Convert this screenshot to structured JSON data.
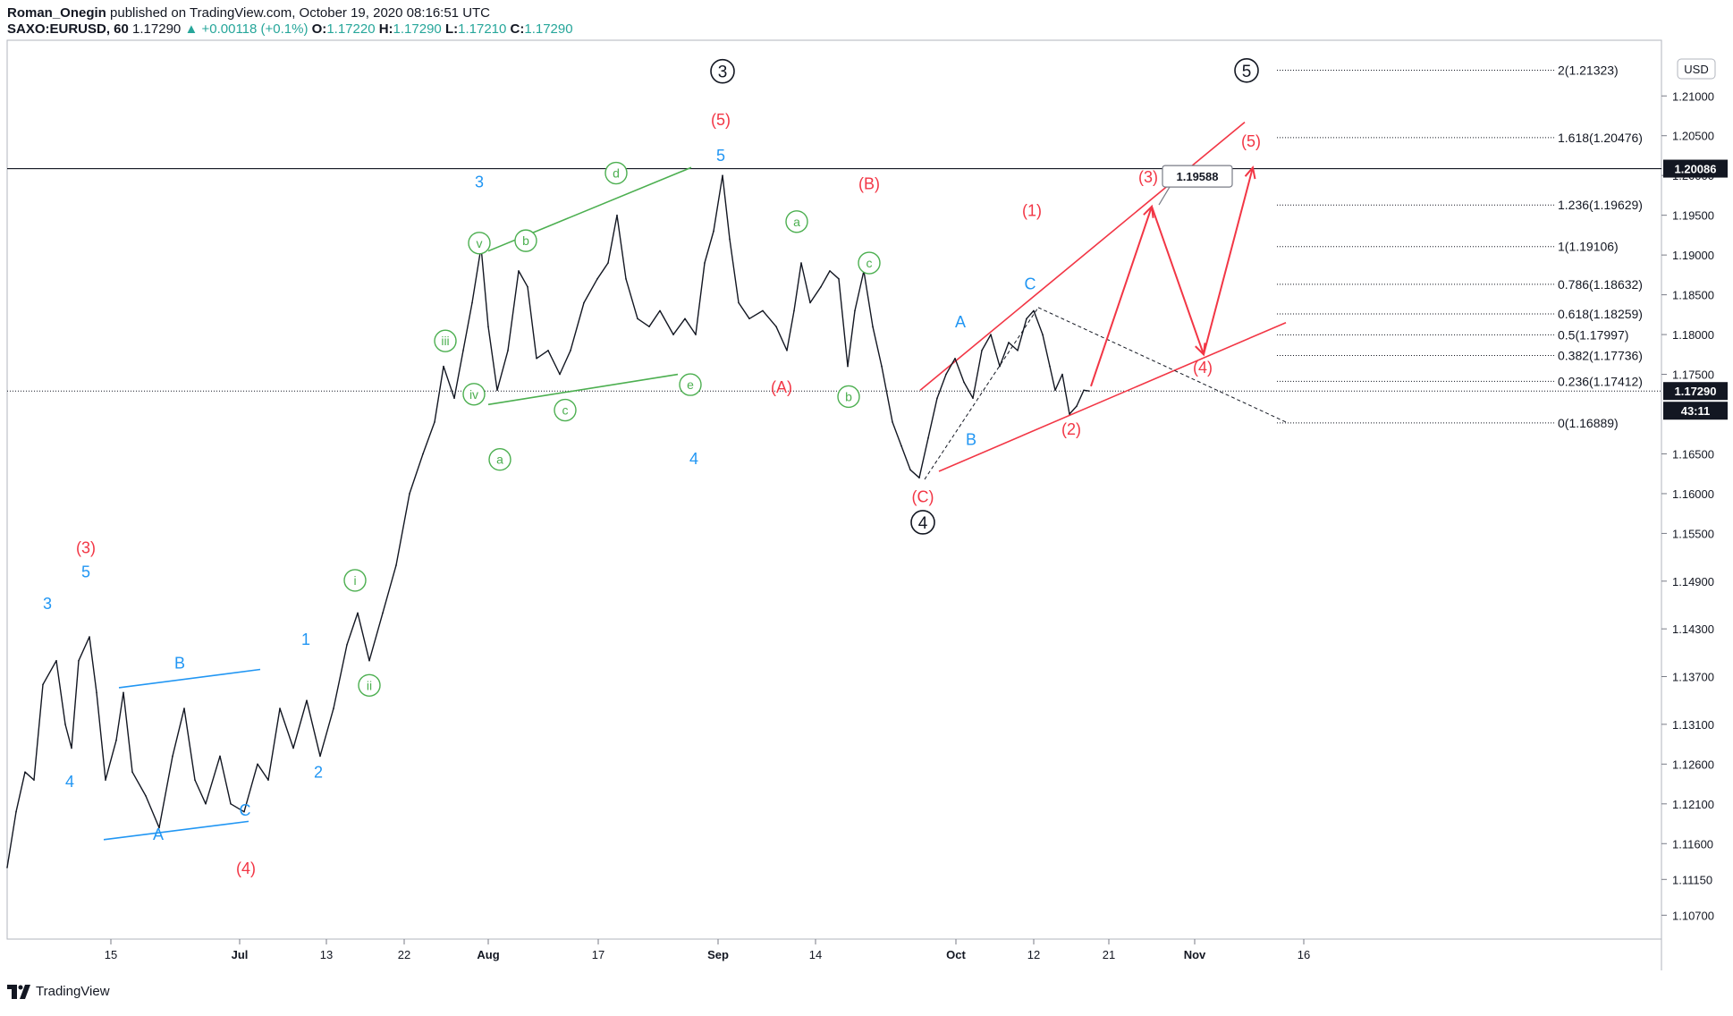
{
  "header": {
    "author": "Roman_Onegin",
    "published_text": "published on TradingView.com, October 19, 2020 08:16:51 UTC",
    "symbol": "SAXO:EURUSD, 60",
    "last": "1.17290",
    "change": "+0.00118 (+0.1%)",
    "o_label": "O:",
    "o": "1.17220",
    "h_label": "H:",
    "h": "1.17290",
    "l_label": "L:",
    "l": "1.17210",
    "c_label": "C:",
    "c": "1.17290"
  },
  "currency_badge": "USD",
  "footer": {
    "brand": "TradingView"
  },
  "colors": {
    "up": "#26a69a",
    "blue": "#2196f3",
    "red": "#f23645",
    "green": "#4caf50",
    "black": "#131722",
    "grid": "#e0e3eb"
  },
  "chart_data": {
    "type": "line",
    "title": "",
    "ylim": [
      1.104,
      1.217
    ],
    "x_ticks": [
      "15",
      "Jul",
      "13",
      "22",
      "Aug",
      "17",
      "Sep",
      "14",
      "Oct",
      "12",
      "21",
      "Nov",
      "16"
    ],
    "y_ticks": [
      "1.21000",
      "1.20500",
      "1.20000",
      "1.19500",
      "1.19000",
      "1.18500",
      "1.18000",
      "1.17500",
      "1.16500",
      "1.16000",
      "1.15500",
      "1.14900",
      "1.14300",
      "1.13700",
      "1.13100",
      "1.12600",
      "1.12100",
      "1.11600",
      "1.11150",
      "1.10700"
    ],
    "price_line": {
      "value": 1.1729,
      "label": "1.17290",
      "countdown": "43:11"
    },
    "resistance_line": {
      "value": 1.20086,
      "label": "1.20086"
    },
    "target_callout": "1.19588",
    "fib_levels": [
      {
        "label": "2(1.21323)",
        "value": 1.21323
      },
      {
        "label": "1.618(1.20476)",
        "value": 1.20476
      },
      {
        "label": "1.236(1.19629)",
        "value": 1.19629
      },
      {
        "label": "1(1.19106)",
        "value": 1.19106
      },
      {
        "label": "0.786(1.18632)",
        "value": 1.18632
      },
      {
        "label": "0.618(1.18259)",
        "value": 1.18259
      },
      {
        "label": "0.5(1.17997)",
        "value": 1.17997
      },
      {
        "label": "0.382(1.17736)",
        "value": 1.17736
      },
      {
        "label": "0.236(1.17412)",
        "value": 1.17412
      },
      {
        "label": "0(1.16889)",
        "value": 1.16889
      }
    ],
    "series": [
      {
        "values": [
          [
            0,
            1.113
          ],
          [
            10,
            1.12
          ],
          [
            20,
            1.125
          ],
          [
            30,
            1.124
          ],
          [
            40,
            1.136
          ],
          [
            55,
            1.139
          ],
          [
            65,
            1.131
          ],
          [
            72,
            1.128
          ],
          [
            80,
            1.139
          ],
          [
            92,
            1.142
          ],
          [
            100,
            1.135
          ],
          [
            110,
            1.124
          ],
          [
            122,
            1.129
          ],
          [
            130,
            1.135
          ],
          [
            140,
            1.125
          ],
          [
            155,
            1.122
          ],
          [
            170,
            1.118
          ],
          [
            185,
            1.127
          ],
          [
            198,
            1.133
          ],
          [
            210,
            1.124
          ],
          [
            222,
            1.121
          ],
          [
            238,
            1.127
          ],
          [
            250,
            1.121
          ],
          [
            265,
            1.12
          ],
          [
            280,
            1.126
          ],
          [
            292,
            1.124
          ],
          [
            305,
            1.133
          ],
          [
            320,
            1.128
          ],
          [
            335,
            1.134
          ],
          [
            350,
            1.127
          ],
          [
            365,
            1.133
          ],
          [
            380,
            1.141
          ],
          [
            392,
            1.145
          ],
          [
            405,
            1.139
          ],
          [
            420,
            1.145
          ],
          [
            435,
            1.151
          ],
          [
            450,
            1.16
          ],
          [
            465,
            1.165
          ],
          [
            478,
            1.169
          ],
          [
            488,
            1.176
          ],
          [
            500,
            1.172
          ],
          [
            510,
            1.178
          ],
          [
            520,
            1.184
          ],
          [
            530,
            1.191
          ],
          [
            538,
            1.181
          ],
          [
            548,
            1.173
          ],
          [
            560,
            1.178
          ],
          [
            572,
            1.188
          ],
          [
            582,
            1.186
          ],
          [
            592,
            1.177
          ],
          [
            605,
            1.178
          ],
          [
            618,
            1.175
          ],
          [
            630,
            1.178
          ],
          [
            645,
            1.184
          ],
          [
            660,
            1.187
          ],
          [
            672,
            1.189
          ],
          [
            682,
            1.195
          ],
          [
            692,
            1.187
          ],
          [
            705,
            1.182
          ],
          [
            718,
            1.181
          ],
          [
            730,
            1.183
          ],
          [
            745,
            1.18
          ],
          [
            758,
            1.182
          ],
          [
            770,
            1.18
          ],
          [
            780,
            1.189
          ],
          [
            790,
            1.193
          ],
          [
            800,
            1.2
          ],
          [
            808,
            1.192
          ],
          [
            818,
            1.184
          ],
          [
            830,
            1.182
          ],
          [
            845,
            1.183
          ],
          [
            860,
            1.181
          ],
          [
            872,
            1.178
          ],
          [
            880,
            1.183
          ],
          [
            888,
            1.189
          ],
          [
            898,
            1.184
          ],
          [
            910,
            1.186
          ],
          [
            920,
            1.188
          ],
          [
            930,
            1.187
          ],
          [
            940,
            1.176
          ],
          [
            948,
            1.183
          ],
          [
            958,
            1.188
          ],
          [
            968,
            1.181
          ],
          [
            978,
            1.176
          ],
          [
            990,
            1.169
          ],
          [
            1000,
            1.166
          ],
          [
            1010,
            1.163
          ],
          [
            1020,
            1.162
          ],
          [
            1030,
            1.167
          ],
          [
            1040,
            1.172
          ],
          [
            1050,
            1.175
          ],
          [
            1060,
            1.177
          ],
          [
            1070,
            1.174
          ],
          [
            1080,
            1.172
          ],
          [
            1090,
            1.178
          ],
          [
            1100,
            1.18
          ],
          [
            1110,
            1.176
          ],
          [
            1120,
            1.179
          ],
          [
            1130,
            1.178
          ],
          [
            1140,
            1.182
          ],
          [
            1148,
            1.183
          ],
          [
            1158,
            1.18
          ],
          [
            1166,
            1.176
          ],
          [
            1172,
            1.173
          ],
          [
            1180,
            1.175
          ],
          [
            1188,
            1.17
          ],
          [
            1196,
            1.171
          ],
          [
            1204,
            1.173
          ],
          [
            1210,
            1.1729
          ]
        ]
      }
    ],
    "wave_labels": [
      {
        "text": "3",
        "color": "blue",
        "d": 45,
        "p": 1.1455,
        "fs": 18
      },
      {
        "text": "5",
        "color": "blue",
        "d": 88,
        "p": 1.1495,
        "fs": 18
      },
      {
        "text": "(3)",
        "color": "red",
        "d": 88,
        "p": 1.1525,
        "fs": 18
      },
      {
        "text": "4",
        "color": "blue",
        "d": 70,
        "p": 1.1231,
        "fs": 18
      },
      {
        "text": "B",
        "color": "blue",
        "d": 193,
        "p": 1.138,
        "fs": 18
      },
      {
        "text": "A",
        "color": "blue",
        "d": 169,
        "p": 1.1165,
        "fs": 18
      },
      {
        "text": "C",
        "color": "blue",
        "d": 266,
        "p": 1.1195,
        "fs": 18
      },
      {
        "text": "(4)",
        "color": "red",
        "d": 267,
        "p": 1.1122,
        "fs": 18
      },
      {
        "text": "1",
        "color": "blue",
        "d": 334,
        "p": 1.141,
        "fs": 18
      },
      {
        "text": "2",
        "color": "blue",
        "d": 348,
        "p": 1.1243,
        "fs": 18
      },
      {
        "text": "3",
        "color": "blue",
        "d": 528,
        "p": 1.1985,
        "fs": 18
      },
      {
        "text": "4",
        "color": "blue",
        "d": 768,
        "p": 1.1637,
        "fs": 18
      },
      {
        "text": "5",
        "color": "blue",
        "d": 798,
        "p": 1.2018,
        "fs": 18
      },
      {
        "text": "(5)",
        "color": "red",
        "d": 798,
        "p": 1.2063,
        "fs": 18
      },
      {
        "text": "(A)",
        "color": "red",
        "d": 866,
        "p": 1.1727,
        "fs": 18
      },
      {
        "text": "(B)",
        "color": "red",
        "d": 964,
        "p": 1.1983,
        "fs": 18
      },
      {
        "text": "(C)",
        "color": "red",
        "d": 1024,
        "p": 1.1589,
        "fs": 18
      },
      {
        "text": "A",
        "color": "blue",
        "d": 1066,
        "p": 1.1809,
        "fs": 18
      },
      {
        "text": "B",
        "color": "blue",
        "d": 1078,
        "p": 1.1661,
        "fs": 18
      },
      {
        "text": "C",
        "color": "blue",
        "d": 1144,
        "p": 1.1857,
        "fs": 18
      },
      {
        "text": "(1)",
        "color": "red",
        "d": 1146,
        "p": 1.1949,
        "fs": 18
      },
      {
        "text": "(2)",
        "color": "red",
        "d": 1190,
        "p": 1.1674,
        "fs": 18
      },
      {
        "text": "(3)",
        "color": "red",
        "d": 1276,
        "p": 1.1991,
        "fs": 18
      },
      {
        "text": "(4)",
        "color": "red",
        "d": 1337,
        "p": 1.1752,
        "fs": 18
      },
      {
        "text": "(5)",
        "color": "red",
        "d": 1391,
        "p": 1.2036,
        "fs": 18
      }
    ],
    "circled_labels": [
      {
        "text": "i",
        "d": 389,
        "p": 1.1491
      },
      {
        "text": "ii",
        "d": 405,
        "p": 1.1359
      },
      {
        "text": "iii",
        "d": 490,
        "p": 1.1792
      },
      {
        "text": "iv",
        "d": 522,
        "p": 1.1725
      },
      {
        "text": "v",
        "d": 528,
        "p": 1.1915
      },
      {
        "text": "a",
        "d": 551,
        "p": 1.1643
      },
      {
        "text": "b",
        "d": 580,
        "p": 1.1918
      },
      {
        "text": "c",
        "d": 624,
        "p": 1.1705
      },
      {
        "text": "d",
        "d": 681,
        "p": 1.2003
      },
      {
        "text": "e",
        "d": 764,
        "p": 1.1737
      },
      {
        "text": "a",
        "d": 883,
        "p": 1.1942
      },
      {
        "text": "b",
        "d": 941,
        "p": 1.1722
      },
      {
        "text": "c",
        "d": 964,
        "p": 1.189
      }
    ],
    "degree_labels": [
      {
        "text": "3",
        "d": 800,
        "p": 1.2131
      },
      {
        "text": "4",
        "d": 1024,
        "p": 1.1564
      },
      {
        "text": "5",
        "d": 1386,
        "p": 1.2132
      }
    ],
    "trend_lines": [
      {
        "color": "blue",
        "pts": [
          [
            108,
            1.1165
          ],
          [
            270,
            1.1188
          ]
        ]
      },
      {
        "color": "blue",
        "pts": [
          [
            125,
            1.1356
          ],
          [
            283,
            1.1379
          ]
        ]
      },
      {
        "color": "green",
        "pts": [
          [
            538,
            1.1905
          ],
          [
            765,
            1.201
          ]
        ]
      },
      {
        "color": "green",
        "pts": [
          [
            538,
            1.1712
          ],
          [
            750,
            1.175
          ]
        ]
      },
      {
        "color": "red",
        "pts": [
          [
            1021,
            1.173
          ],
          [
            1384,
            1.2067
          ]
        ]
      },
      {
        "color": "red",
        "pts": [
          [
            1042,
            1.1628
          ],
          [
            1430,
            1.1815
          ]
        ]
      }
    ],
    "dashed_lines": [
      {
        "pts": [
          [
            1026,
            1.1618
          ],
          [
            1153,
            1.1834
          ]
        ]
      },
      {
        "pts": [
          [
            1153,
            1.1834
          ],
          [
            1430,
            1.169
          ]
        ]
      }
    ],
    "projection_arrows": [
      {
        "pts": [
          [
            1212,
            1.1735
          ],
          [
            1280,
            1.1961
          ]
        ],
        "head": true
      },
      {
        "pts": [
          [
            1280,
            1.1961
          ],
          [
            1338,
            1.1775
          ]
        ],
        "head": true
      },
      {
        "pts": [
          [
            1338,
            1.1775
          ],
          [
            1393,
            1.201
          ]
        ],
        "head": true
      }
    ]
  }
}
